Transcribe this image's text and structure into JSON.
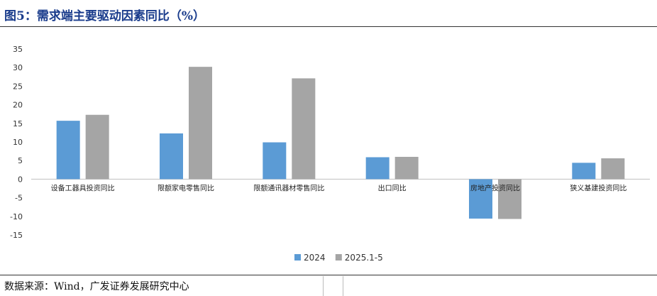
{
  "title": "图5：需求端主要驱动因素同比（%）",
  "source": "数据来源：Wind，广发证券发展研究中心",
  "chart_data": {
    "type": "bar",
    "categories": [
      "设备工器具投资同比",
      "限额家电零售同比",
      "限额通讯器材零售同比",
      "出口同比",
      "房地产投资同比",
      "狭义基建投资同比"
    ],
    "series": [
      {
        "name": "2024",
        "color": "#5b9bd5",
        "values": [
          15.7,
          12.3,
          9.9,
          5.9,
          -10.6,
          4.4
        ]
      },
      {
        "name": "2025.1-5",
        "color": "#a5a5a5",
        "values": [
          17.3,
          30.2,
          27.1,
          6.0,
          -10.7,
          5.6
        ]
      }
    ],
    "ylim": [
      -15,
      35
    ],
    "yticks": [
      35,
      30,
      25,
      20,
      15,
      10,
      5,
      0,
      -5,
      -10,
      -15
    ],
    "grid": false,
    "legend": "bottom-center",
    "xlabel": "",
    "ylabel": ""
  }
}
